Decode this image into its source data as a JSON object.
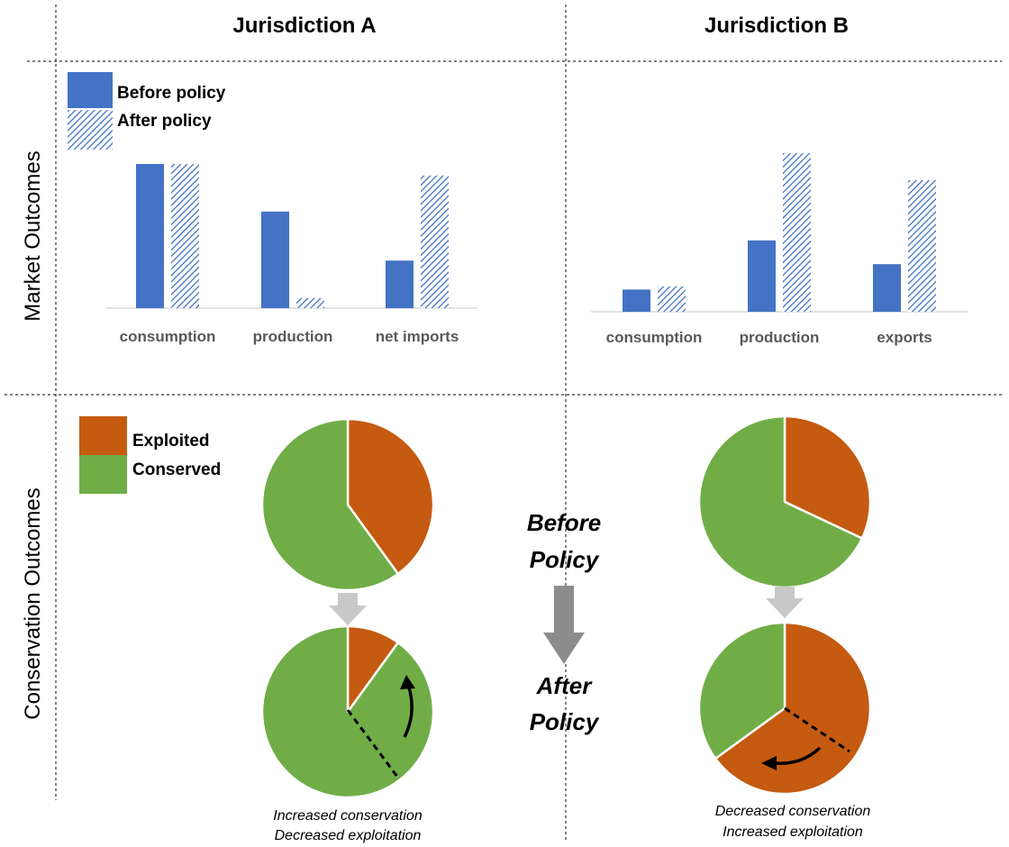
{
  "headers": {
    "jurisdiction_a": "Jurisdiction A",
    "jurisdiction_b": "Jurisdiction B",
    "market_outcomes": "Market Outcomes",
    "conservation_outcomes": "Conservation Outcomes"
  },
  "colors": {
    "bar_blue": "#4472C4",
    "exploited": "#C55A11",
    "conserved": "#70AD47",
    "arrow_light": "#C8C8C8",
    "arrow_dark": "#8C8C8C"
  },
  "bar_legend": {
    "before": "Before policy",
    "after": "After policy"
  },
  "chart_data": [
    {
      "type": "bar",
      "panel": "Jurisdiction A",
      "categories": [
        "consumption",
        "production",
        "net imports"
      ],
      "series": [
        {
          "name": "Before policy",
          "values": [
            100,
            67,
            33
          ]
        },
        {
          "name": "After policy",
          "values": [
            100,
            7,
            92
          ]
        }
      ],
      "ylim": [
        0,
        100
      ]
    },
    {
      "type": "bar",
      "panel": "Jurisdiction B",
      "categories": [
        "consumption",
        "production",
        "exports"
      ],
      "series": [
        {
          "name": "Before policy",
          "values": [
            14,
            45,
            30
          ]
        },
        {
          "name": "After policy",
          "values": [
            16,
            100,
            83
          ]
        }
      ],
      "ylim": [
        0,
        100
      ]
    },
    {
      "type": "pie",
      "panel": "Jurisdiction A - Before Policy",
      "categories": [
        "Exploited",
        "Conserved"
      ],
      "values": [
        40,
        60
      ]
    },
    {
      "type": "pie",
      "panel": "Jurisdiction A - After Policy",
      "categories": [
        "Exploited",
        "Conserved"
      ],
      "values": [
        10,
        90
      ]
    },
    {
      "type": "pie",
      "panel": "Jurisdiction B - Before Policy",
      "categories": [
        "Exploited",
        "Conserved"
      ],
      "values": [
        32,
        68
      ]
    },
    {
      "type": "pie",
      "panel": "Jurisdiction B - After Policy",
      "categories": [
        "Exploited",
        "Conserved"
      ],
      "values": [
        65,
        35
      ]
    }
  ],
  "pie_legend": {
    "exploited": "Exploited",
    "conserved": "Conserved"
  },
  "center": {
    "before_line1": "Before",
    "before_line2": "Policy",
    "after_line1": "After",
    "after_line2": "Policy"
  },
  "captions": {
    "a_line1": "Increased conservation",
    "a_line2": "Decreased exploitation",
    "b_line1": "Decreased conservation",
    "b_line2": "Increased exploitation"
  }
}
